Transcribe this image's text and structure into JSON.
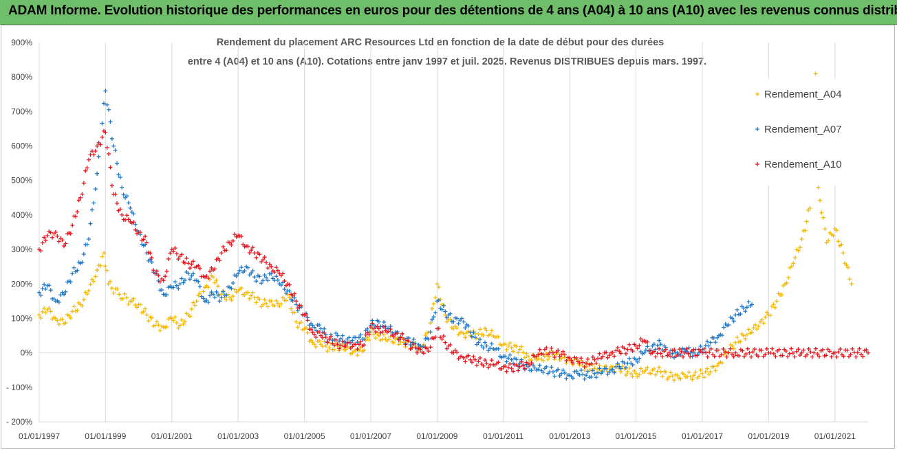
{
  "banner": {
    "title": "ADAM Informe. Evolution historique des performances en euros pour des détentions de 4 ans (A04) à 10 ans (A10) avec les revenus connus distribués"
  },
  "colors": {
    "banner_bg": "#6fbf6a",
    "A04": "#f5b800",
    "A07": "#1f77c8",
    "A10": "#e8141c"
  },
  "chart_data": {
    "type": "scatter",
    "title_line1": "Rendement du placement ARC Resources Ltd en fonction de la date de début pour des durées",
    "title_line2": "entre 4 (A04) et 10 ans (A10). Cotations entre janv 1997 et juil. 2025. Revenus DISTRIBUES depuis mars. 1997.",
    "x_axis": {
      "type": "date",
      "min": "1997-01-01",
      "max": "2022-01-01",
      "tick_labels": [
        "01/01/1997",
        "01/01/1999",
        "01/01/2001",
        "01/01/2003",
        "01/01/2005",
        "01/01/2007",
        "01/01/2009",
        "01/01/2011",
        "01/01/2013",
        "01/01/2015",
        "01/01/2017",
        "01/01/2019",
        "01/01/2021"
      ]
    },
    "y_axis": {
      "min": -200,
      "max": 900,
      "step": 100,
      "unit": "%",
      "tick_labels": [
        "- 200%",
        "- 100%",
        "0%",
        "100%",
        "200%",
        "300%",
        "400%",
        "500%",
        "600%",
        "700%",
        "800%",
        "900%"
      ]
    },
    "grid": "vertical",
    "legend_position": "top-right",
    "series": [
      {
        "name": "Rendement_A04",
        "points": [
          [
            "1997-01-01",
            110
          ],
          [
            "1997-04-01",
            125
          ],
          [
            "1997-07-01",
            100
          ],
          [
            "1997-10-01",
            85
          ],
          [
            "1998-01-01",
            120
          ],
          [
            "1998-04-01",
            140
          ],
          [
            "1998-07-01",
            180
          ],
          [
            "1998-10-01",
            240
          ],
          [
            "1998-12-15",
            290
          ],
          [
            "1999-02-01",
            200
          ],
          [
            "1999-06-01",
            170
          ],
          [
            "1999-10-01",
            150
          ],
          [
            "2000-01-01",
            140
          ],
          [
            "2000-04-01",
            110
          ],
          [
            "2000-07-01",
            80
          ],
          [
            "2000-10-01",
            75
          ],
          [
            "2001-01-01",
            100
          ],
          [
            "2001-04-01",
            80
          ],
          [
            "2001-07-01",
            110
          ],
          [
            "2001-10-01",
            150
          ],
          [
            "2002-01-01",
            190
          ],
          [
            "2002-04-01",
            220
          ],
          [
            "2002-07-01",
            170
          ],
          [
            "2002-10-01",
            160
          ],
          [
            "2003-01-01",
            180
          ],
          [
            "2003-04-01",
            175
          ],
          [
            "2003-07-01",
            160
          ],
          [
            "2003-10-01",
            140
          ],
          [
            "2004-01-01",
            150
          ],
          [
            "2004-04-01",
            135
          ],
          [
            "2004-07-01",
            170
          ],
          [
            "2004-10-01",
            90
          ],
          [
            "2005-01-01",
            70
          ],
          [
            "2005-04-01",
            30
          ],
          [
            "2005-07-01",
            25
          ],
          [
            "2005-10-01",
            15
          ],
          [
            "2006-01-01",
            20
          ],
          [
            "2006-04-01",
            10
          ],
          [
            "2006-07-01",
            5
          ],
          [
            "2006-10-01",
            5
          ],
          [
            "2007-01-01",
            60
          ],
          [
            "2007-04-01",
            50
          ],
          [
            "2007-07-01",
            35
          ],
          [
            "2007-10-01",
            40
          ],
          [
            "2008-01-01",
            30
          ],
          [
            "2008-04-01",
            20
          ],
          [
            "2008-07-01",
            15
          ],
          [
            "2008-10-01",
            60
          ],
          [
            "2009-01-01",
            200
          ],
          [
            "2009-04-01",
            110
          ],
          [
            "2009-07-01",
            70
          ],
          [
            "2009-10-01",
            60
          ],
          [
            "2010-01-01",
            50
          ],
          [
            "2010-04-01",
            55
          ],
          [
            "2010-07-01",
            65
          ],
          [
            "2010-10-01",
            45
          ],
          [
            "2011-01-01",
            25
          ],
          [
            "2011-04-01",
            15
          ],
          [
            "2011-07-01",
            10
          ],
          [
            "2011-10-01",
            -10
          ],
          [
            "2012-01-01",
            -20
          ],
          [
            "2012-04-01",
            -10
          ],
          [
            "2012-07-01",
            -5
          ],
          [
            "2012-10-01",
            -15
          ],
          [
            "2013-01-01",
            -20
          ],
          [
            "2013-04-01",
            -30
          ],
          [
            "2013-07-01",
            -40
          ],
          [
            "2013-10-01",
            -45
          ],
          [
            "2014-01-01",
            -50
          ],
          [
            "2014-04-01",
            -40
          ],
          [
            "2014-07-01",
            -45
          ],
          [
            "2014-10-01",
            -55
          ],
          [
            "2015-01-01",
            -60
          ],
          [
            "2015-04-01",
            -55
          ],
          [
            "2015-07-01",
            -50
          ],
          [
            "2015-10-01",
            -55
          ],
          [
            "2016-01-01",
            -70
          ],
          [
            "2016-04-01",
            -65
          ],
          [
            "2016-07-01",
            -70
          ],
          [
            "2016-10-01",
            -65
          ],
          [
            "2017-01-01",
            -60
          ],
          [
            "2017-04-01",
            -55
          ],
          [
            "2017-07-01",
            -30
          ],
          [
            "2017-10-01",
            0
          ],
          [
            "2018-01-01",
            30
          ],
          [
            "2018-04-01",
            50
          ],
          [
            "2018-07-01",
            60
          ],
          [
            "2018-10-01",
            90
          ],
          [
            "2019-01-01",
            110
          ],
          [
            "2019-04-01",
            150
          ],
          [
            "2019-07-01",
            200
          ],
          [
            "2019-10-01",
            260
          ],
          [
            "2020-01-01",
            330
          ],
          [
            "2020-04-01",
            420
          ],
          [
            "2020-06-01",
            810
          ],
          [
            "2020-07-01",
            480
          ],
          [
            "2020-10-01",
            320
          ],
          [
            "2021-01-01",
            360
          ],
          [
            "2021-04-01",
            290
          ],
          [
            "2021-07-01",
            200
          ]
        ]
      },
      {
        "name": "Rendement_A07",
        "points": [
          [
            "1997-01-01",
            175
          ],
          [
            "1997-04-01",
            195
          ],
          [
            "1997-07-01",
            150
          ],
          [
            "1997-10-01",
            170
          ],
          [
            "1998-01-01",
            230
          ],
          [
            "1998-04-01",
            260
          ],
          [
            "1998-07-01",
            330
          ],
          [
            "1998-10-01",
            520
          ],
          [
            "1999-01-01",
            760
          ],
          [
            "1999-04-01",
            600
          ],
          [
            "1999-07-01",
            480
          ],
          [
            "1999-10-01",
            420
          ],
          [
            "2000-01-01",
            350
          ],
          [
            "2000-04-01",
            290
          ],
          [
            "2000-07-01",
            230
          ],
          [
            "2000-10-01",
            170
          ],
          [
            "2001-01-01",
            190
          ],
          [
            "2001-04-01",
            200
          ],
          [
            "2001-07-01",
            230
          ],
          [
            "2001-10-01",
            210
          ],
          [
            "2002-01-01",
            150
          ],
          [
            "2002-04-01",
            170
          ],
          [
            "2002-07-01",
            160
          ],
          [
            "2002-10-01",
            190
          ],
          [
            "2003-01-01",
            230
          ],
          [
            "2003-04-01",
            250
          ],
          [
            "2003-07-01",
            220
          ],
          [
            "2003-10-01",
            210
          ],
          [
            "2004-01-01",
            230
          ],
          [
            "2004-04-01",
            200
          ],
          [
            "2004-07-01",
            180
          ],
          [
            "2004-10-01",
            140
          ],
          [
            "2005-01-01",
            110
          ],
          [
            "2005-04-01",
            80
          ],
          [
            "2005-07-01",
            70
          ],
          [
            "2005-10-01",
            40
          ],
          [
            "2006-01-01",
            50
          ],
          [
            "2006-04-01",
            30
          ],
          [
            "2006-07-01",
            45
          ],
          [
            "2006-10-01",
            40
          ],
          [
            "2007-01-01",
            80
          ],
          [
            "2007-04-01",
            90
          ],
          [
            "2007-07-01",
            70
          ],
          [
            "2007-10-01",
            60
          ],
          [
            "2008-01-01",
            40
          ],
          [
            "2008-04-01",
            30
          ],
          [
            "2008-07-01",
            20
          ],
          [
            "2008-10-01",
            40
          ],
          [
            "2009-01-01",
            150
          ],
          [
            "2009-04-01",
            120
          ],
          [
            "2009-07-01",
            90
          ],
          [
            "2009-10-01",
            100
          ],
          [
            "2010-01-01",
            60
          ],
          [
            "2010-04-01",
            30
          ],
          [
            "2010-07-01",
            20
          ],
          [
            "2010-10-01",
            10
          ],
          [
            "2011-01-01",
            -10
          ],
          [
            "2011-04-01",
            -20
          ],
          [
            "2011-07-01",
            -30
          ],
          [
            "2011-10-01",
            -40
          ],
          [
            "2012-01-01",
            -50
          ],
          [
            "2012-04-01",
            -45
          ],
          [
            "2012-07-01",
            -55
          ],
          [
            "2012-10-01",
            -60
          ],
          [
            "2013-01-01",
            -65
          ],
          [
            "2013-04-01",
            -60
          ],
          [
            "2013-07-01",
            -65
          ],
          [
            "2013-10-01",
            -60
          ],
          [
            "2014-01-01",
            -55
          ],
          [
            "2014-04-01",
            -50
          ],
          [
            "2014-07-01",
            -40
          ],
          [
            "2014-10-01",
            -30
          ],
          [
            "2015-01-01",
            -20
          ],
          [
            "2015-04-01",
            0
          ],
          [
            "2015-07-01",
            20
          ],
          [
            "2015-10-01",
            25
          ],
          [
            "2016-01-01",
            -5
          ],
          [
            "2016-04-01",
            0
          ],
          [
            "2016-07-01",
            5
          ],
          [
            "2016-10-01",
            0
          ],
          [
            "2017-01-01",
            10
          ],
          [
            "2017-04-01",
            30
          ],
          [
            "2017-07-01",
            50
          ],
          [
            "2017-10-01",
            80
          ],
          [
            "2018-01-01",
            110
          ],
          [
            "2018-04-01",
            130
          ],
          [
            "2018-07-01",
            140
          ]
        ]
      },
      {
        "name": "Rendement_A10",
        "points": [
          [
            "1997-01-01",
            300
          ],
          [
            "1997-04-01",
            340
          ],
          [
            "1997-07-01",
            350
          ],
          [
            "1997-10-01",
            310
          ],
          [
            "1998-01-01",
            370
          ],
          [
            "1998-04-01",
            450
          ],
          [
            "1998-07-01",
            560
          ],
          [
            "1998-10-01",
            600
          ],
          [
            "1999-01-01",
            640
          ],
          [
            "1999-04-01",
            460
          ],
          [
            "1999-07-01",
            400
          ],
          [
            "1999-10-01",
            380
          ],
          [
            "2000-01-01",
            350
          ],
          [
            "2000-04-01",
            320
          ],
          [
            "2000-07-01",
            230
          ],
          [
            "2000-10-01",
            210
          ],
          [
            "2001-01-01",
            300
          ],
          [
            "2001-04-01",
            280
          ],
          [
            "2001-07-01",
            260
          ],
          [
            "2001-10-01",
            250
          ],
          [
            "2002-01-01",
            220
          ],
          [
            "2002-04-01",
            240
          ],
          [
            "2002-07-01",
            290
          ],
          [
            "2002-10-01",
            320
          ],
          [
            "2003-01-01",
            340
          ],
          [
            "2003-04-01",
            310
          ],
          [
            "2003-07-01",
            290
          ],
          [
            "2003-10-01",
            270
          ],
          [
            "2004-01-01",
            250
          ],
          [
            "2004-04-01",
            230
          ],
          [
            "2004-07-01",
            200
          ],
          [
            "2004-10-01",
            150
          ],
          [
            "2005-01-01",
            110
          ],
          [
            "2005-04-01",
            60
          ],
          [
            "2005-07-01",
            50
          ],
          [
            "2005-10-01",
            40
          ],
          [
            "2006-01-01",
            25
          ],
          [
            "2006-04-01",
            20
          ],
          [
            "2006-07-01",
            25
          ],
          [
            "2006-10-01",
            20
          ],
          [
            "2007-01-01",
            75
          ],
          [
            "2007-04-01",
            70
          ],
          [
            "2007-07-01",
            60
          ],
          [
            "2007-10-01",
            55
          ],
          [
            "2008-01-01",
            40
          ],
          [
            "2008-04-01",
            15
          ],
          [
            "2008-07-01",
            10
          ],
          [
            "2008-10-01",
            5
          ],
          [
            "2009-01-01",
            70
          ],
          [
            "2009-04-01",
            30
          ],
          [
            "2009-07-01",
            0
          ],
          [
            "2009-10-01",
            -10
          ],
          [
            "2010-01-01",
            -20
          ],
          [
            "2010-04-01",
            -25
          ],
          [
            "2010-07-01",
            -30
          ],
          [
            "2010-10-01",
            -35
          ],
          [
            "2011-01-01",
            -40
          ],
          [
            "2011-04-01",
            -45
          ],
          [
            "2011-07-01",
            -40
          ],
          [
            "2011-10-01",
            -30
          ],
          [
            "2012-01-01",
            -10
          ],
          [
            "2012-04-01",
            10
          ],
          [
            "2012-07-01",
            0
          ],
          [
            "2012-10-01",
            -5
          ],
          [
            "2013-01-01",
            -15
          ],
          [
            "2013-04-01",
            -25
          ],
          [
            "2013-07-01",
            -30
          ],
          [
            "2013-10-01",
            -20
          ],
          [
            "2014-01-01",
            -10
          ],
          [
            "2014-04-01",
            0
          ],
          [
            "2014-07-01",
            5
          ],
          [
            "2014-10-01",
            10
          ],
          [
            "2015-01-01",
            20
          ],
          [
            "2015-04-01",
            35
          ],
          [
            "2015-07-01",
            0
          ],
          [
            "2016-01-01",
            0
          ],
          [
            "2017-01-01",
            0
          ],
          [
            "2018-01-01",
            0
          ],
          [
            "2019-01-01",
            0
          ],
          [
            "2020-01-01",
            0
          ],
          [
            "2021-01-01",
            0
          ],
          [
            "2022-01-01",
            0
          ]
        ]
      }
    ]
  }
}
